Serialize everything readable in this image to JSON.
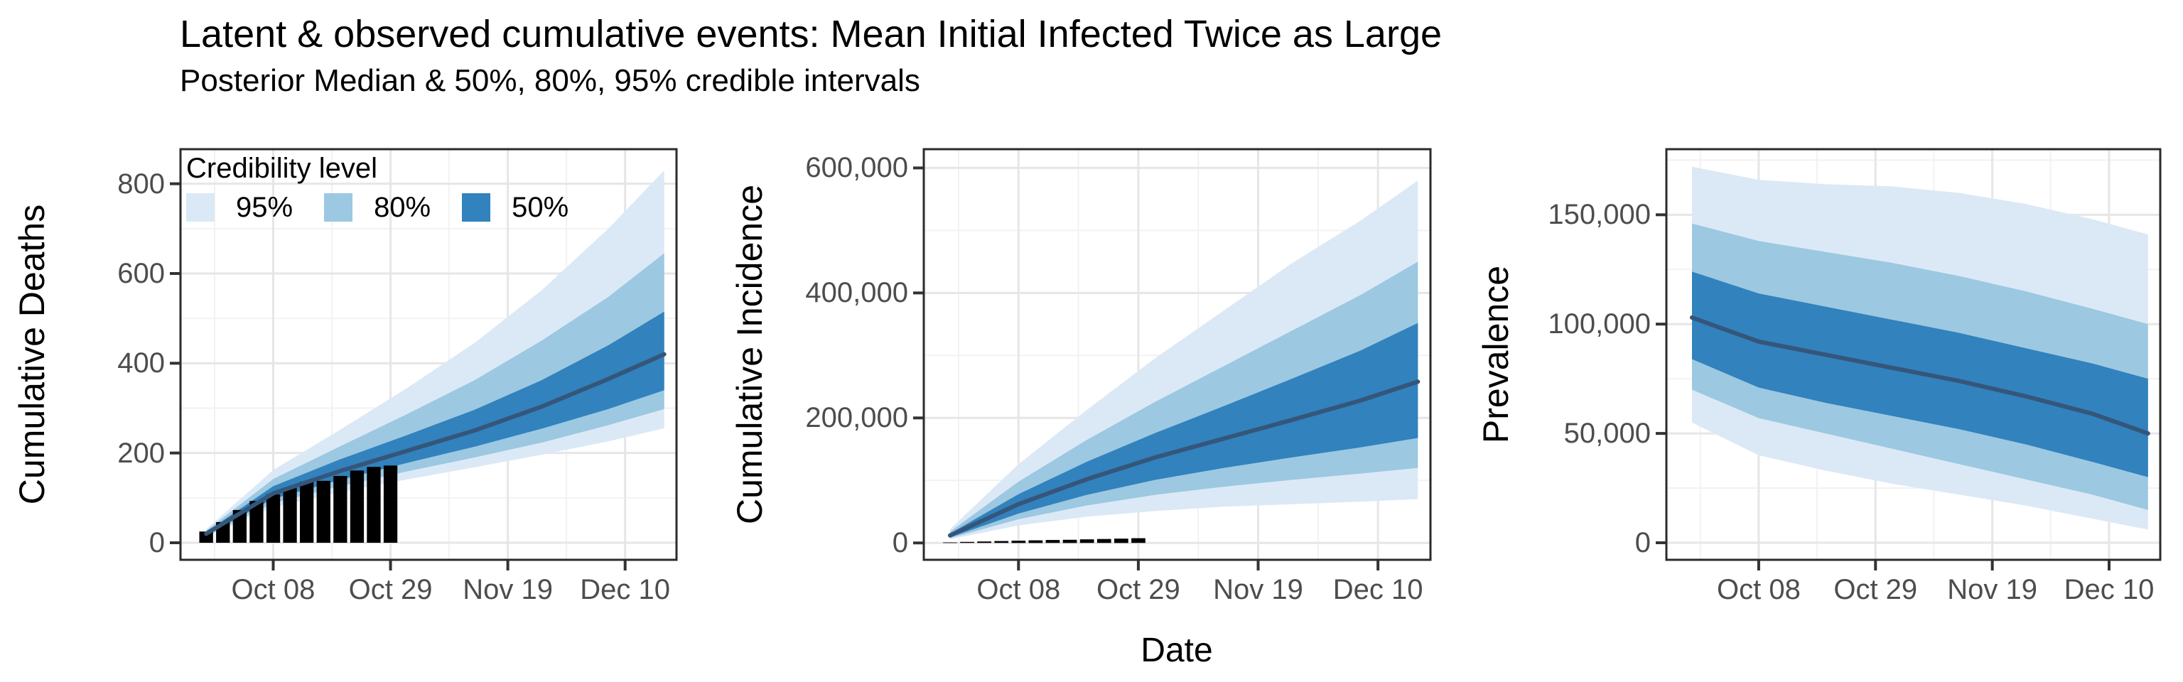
{
  "page": {
    "title": "Latent & observed cumulative events: Mean Initial Infected Twice as Large",
    "subtitle": "Posterior Median & 50%, 80%, 95% credible intervals"
  },
  "legend": {
    "title": "Credibility level",
    "items": [
      {
        "label": "95%",
        "color": "#DBE9F6"
      },
      {
        "label": "80%",
        "color": "#9CC8E1"
      },
      {
        "label": "50%",
        "color": "#3182BD"
      }
    ]
  },
  "colors": {
    "ci95": "#DBE9F6",
    "ci80": "#9CC8E1",
    "ci50": "#3182BD",
    "median_line": "#35567A",
    "observed_bar": "#000000",
    "axis_text": "#4D4D4D",
    "panel_border": "#2B2B2B",
    "tick_mark": "#333333",
    "grid_major": "#E6E6E6",
    "grid_minor": "#F2F2F2",
    "panel_bg": "#FFFFFF"
  },
  "x_axis": {
    "label": "Date",
    "tick_labels": [
      "Oct 08",
      "Oct 29",
      "Nov 19",
      "Dec 10"
    ],
    "tick_days": [
      12,
      33,
      54,
      75
    ],
    "minor_days": [
      1.5,
      22.5,
      43.5,
      64.5,
      85.5
    ],
    "start_date": "Sep 26",
    "end_date": "Dec 17"
  },
  "chart_data": [
    {
      "type": "area",
      "ylabel": "Cumulative Deaths",
      "yticks": [
        0,
        200,
        400,
        600,
        800
      ],
      "ytick_labels": [
        "0",
        "200",
        "400",
        "600",
        "800"
      ],
      "y_minor": [
        100,
        300,
        500,
        700
      ],
      "ylim": [
        -38,
        877
      ],
      "x_dates": [
        "Sep 26",
        "Oct 08",
        "Oct 20",
        "Nov 01",
        "Nov 13",
        "Nov 25",
        "Dec 07",
        "Dec 17"
      ],
      "x_days": [
        0,
        12,
        24,
        36,
        48,
        60,
        72,
        82
      ],
      "series": {
        "median": [
          20,
          110,
          160,
          205,
          250,
          303,
          365,
          420
        ],
        "ci50_upper": [
          24,
          126,
          186,
          240,
          296,
          362,
          440,
          515
        ],
        "ci50_lower": [
          17,
          98,
          140,
          178,
          214,
          254,
          298,
          340
        ],
        "ci80_upper": [
          27,
          142,
          215,
          287,
          362,
          450,
          548,
          645
        ],
        "ci80_lower": [
          15,
          88,
          126,
          159,
          190,
          223,
          262,
          298
        ],
        "ci95_upper": [
          30,
          162,
          252,
          345,
          445,
          562,
          700,
          830
        ],
        "ci95_lower": [
          13,
          79,
          113,
          141,
          168,
          196,
          226,
          255
        ]
      },
      "observed": {
        "dates": [
          "Sep 26",
          "Sep 29",
          "Oct 02",
          "Oct 05",
          "Oct 08",
          "Oct 11",
          "Oct 14",
          "Oct 17",
          "Oct 20",
          "Oct 23",
          "Oct 26",
          "Oct 29"
        ],
        "days": [
          0,
          3,
          6,
          9,
          12,
          15,
          18,
          21,
          24,
          27,
          30,
          33
        ],
        "values": [
          25,
          46,
          73,
          93,
          108,
          122,
          136,
          138,
          149,
          161,
          169,
          172
        ]
      }
    },
    {
      "type": "area",
      "ylabel": "Cumulative Incidence",
      "yticks": [
        0,
        200000,
        400000,
        600000
      ],
      "ytick_labels": [
        "0",
        "200,000",
        "400,000",
        "600,000"
      ],
      "y_minor": [
        100000,
        300000,
        500000
      ],
      "ylim": [
        -27000,
        630000
      ],
      "x_dates": [
        "Sep 26",
        "Oct 08",
        "Oct 20",
        "Nov 01",
        "Nov 13",
        "Nov 25",
        "Dec 07",
        "Dec 17"
      ],
      "x_days": [
        0,
        12,
        24,
        36,
        48,
        60,
        72,
        82
      ],
      "series": {
        "median": [
          12000,
          62000,
          102000,
          137000,
          167000,
          197000,
          228000,
          258000
        ],
        "ci50_upper": [
          15000,
          78000,
          130000,
          176000,
          219000,
          263000,
          308000,
          352000
        ],
        "ci50_lower": [
          9000,
          47000,
          77000,
          101000,
          120000,
          137000,
          153000,
          168000
        ],
        "ci80_upper": [
          18000,
          98000,
          165000,
          226000,
          283000,
          340000,
          397000,
          450000
        ],
        "ci80_lower": [
          7500,
          38000,
          60000,
          77000,
          90000,
          101000,
          111000,
          120000
        ],
        "ci95_upper": [
          22000,
          126000,
          213000,
          296000,
          372000,
          448000,
          516000,
          580000
        ],
        "ci95_lower": [
          6000,
          28000,
          42000,
          51000,
          58000,
          62000,
          66000,
          70000
        ]
      },
      "observed": {
        "dates": [
          "Sep 26",
          "Sep 29",
          "Oct 02",
          "Oct 05",
          "Oct 08",
          "Oct 11",
          "Oct 14",
          "Oct 17",
          "Oct 20",
          "Oct 23",
          "Oct 26",
          "Oct 29"
        ],
        "days": [
          0,
          3,
          6,
          9,
          12,
          15,
          18,
          21,
          24,
          27,
          30,
          33
        ],
        "values": [
          900,
          1600,
          2300,
          3000,
          3600,
          4200,
          4700,
          5100,
          5700,
          6300,
          6900,
          7500
        ]
      }
    },
    {
      "type": "area",
      "ylabel": "Prevalence",
      "yticks": [
        0,
        50000,
        100000,
        150000
      ],
      "ytick_labels": [
        "0",
        "50,000",
        "100,000",
        "150,000"
      ],
      "y_minor": [
        25000,
        75000,
        125000,
        175000
      ],
      "ylim": [
        -7800,
        180000
      ],
      "x_dates": [
        "Sep 26",
        "Oct 08",
        "Oct 20",
        "Nov 01",
        "Nov 13",
        "Nov 25",
        "Dec 07",
        "Dec 17"
      ],
      "x_days": [
        0,
        12,
        24,
        36,
        48,
        60,
        72,
        82
      ],
      "series": {
        "median": [
          103000,
          92000,
          86000,
          80000,
          74000,
          67000,
          59000,
          50000
        ],
        "ci50_upper": [
          124000,
          114000,
          108000,
          102000,
          96000,
          89000,
          82000,
          75000
        ],
        "ci50_lower": [
          84000,
          71000,
          64000,
          58000,
          52000,
          45000,
          37000,
          30000
        ],
        "ci80_upper": [
          146000,
          138000,
          133000,
          128000,
          122000,
          115000,
          107000,
          100000
        ],
        "ci80_lower": [
          70000,
          57000,
          50000,
          43000,
          36000,
          29000,
          22000,
          15000
        ],
        "ci95_upper": [
          172000,
          166000,
          164000,
          163000,
          160000,
          155000,
          148000,
          141000
        ],
        "ci95_lower": [
          55000,
          40000,
          33000,
          27000,
          22000,
          17000,
          11000,
          6000
        ]
      },
      "observed": null
    }
  ]
}
